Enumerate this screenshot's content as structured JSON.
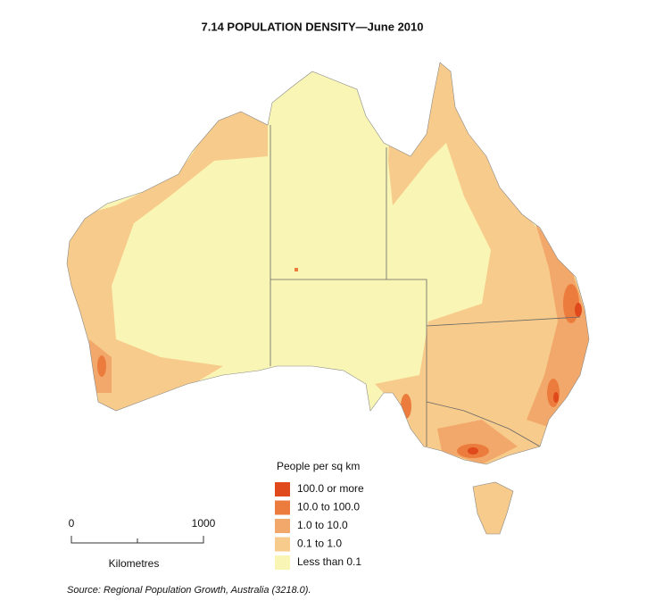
{
  "header": {
    "title": "7.14   POPULATION DENSITY—June 2010"
  },
  "legend": {
    "title": "People per sq km",
    "items": [
      {
        "label": "100.0 or more",
        "color": "#e0491b"
      },
      {
        "label": "10.0 to 100.0",
        "color": "#ec7c3d"
      },
      {
        "label": "1.0 to 10.0",
        "color": "#f2a86a"
      },
      {
        "label": "0.1 to 1.0",
        "color": "#f7cb8b"
      },
      {
        "label": "Less than 0.1",
        "color": "#f9f5b5"
      }
    ]
  },
  "scale_bar": {
    "ticks": [
      "0",
      "1000"
    ],
    "unit": "Kilometres"
  },
  "source": "Source: Regional Population Growth, Australia (3218.0)."
}
